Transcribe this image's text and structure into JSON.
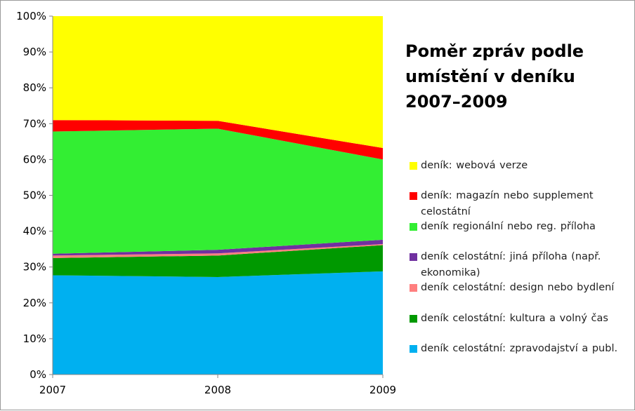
{
  "chart_data": {
    "type": "area",
    "stacked": true,
    "normalized": true,
    "title": "Poměr zpráv podle umístění v deníku 2007–2009",
    "title_lines": [
      "Poměr zpráv podle",
      "umístění v deníku",
      "2007–2009"
    ],
    "x": [
      "2007",
      "2008",
      "2009"
    ],
    "ylim": [
      0,
      100
    ],
    "yticks": [
      "0%",
      "10%",
      "20%",
      "30%",
      "40%",
      "50%",
      "60%",
      "70%",
      "80%",
      "90%",
      "100%"
    ],
    "grid": false,
    "legend_position": "right",
    "series": [
      {
        "name": "deník celostátní:  zpravodajství a publ.",
        "color": "#00b0f0",
        "values": [
          27.7,
          27.2,
          28.8
        ]
      },
      {
        "name": "deník celostátní:  kultura a volný čas",
        "color": "#009900",
        "values": [
          4.8,
          6.0,
          7.3
        ]
      },
      {
        "name": "deník celostátní:  design nebo bydlení",
        "color": "#ff7f7f",
        "values": [
          0.7,
          0.6,
          0.3
        ]
      },
      {
        "name": "deník celostátní:  jiná příloha (např. ekonomika)",
        "color": "#7030a0",
        "values": [
          0.5,
          1.0,
          1.2
        ]
      },
      {
        "name": "deník regionální  nebo reg. příloha",
        "color": "#33ee33",
        "values": [
          34.1,
          33.8,
          22.4
        ]
      },
      {
        "name": "deník: magazín nebo supplement celostátní",
        "color": "#ff0000",
        "values": [
          3.2,
          2.2,
          3.2
        ]
      },
      {
        "name": "deník: webová verze",
        "color": "#ffff00",
        "values": [
          29.0,
          29.2,
          36.8
        ]
      }
    ]
  }
}
